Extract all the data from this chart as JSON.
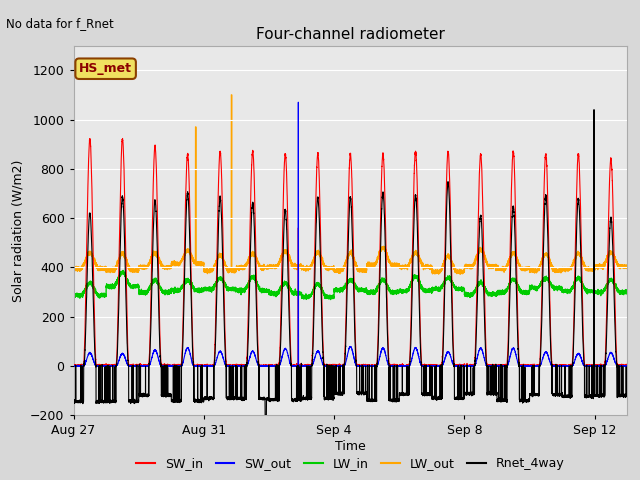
{
  "title": "Four-channel radiometer",
  "top_left_text": "No data for f_Rnet",
  "annotation_box": "HS_met",
  "xlabel": "Time",
  "ylabel": "Solar radiation (W/m2)",
  "ylim": [
    -200,
    1300
  ],
  "yticks": [
    -200,
    0,
    200,
    400,
    600,
    800,
    1000,
    1200
  ],
  "fig_bg_color": "#d8d8d8",
  "plot_bg_color": "#e8e8e8",
  "colors": {
    "SW_in": "#ff0000",
    "SW_out": "#0000ff",
    "LW_in": "#00cc00",
    "LW_out": "#ffa500",
    "Rnet_4way": "#000000"
  },
  "legend_labels": [
    "SW_in",
    "SW_out",
    "LW_in",
    "LW_out",
    "Rnet_4way"
  ],
  "x_tick_labels": [
    "Aug 27",
    "Aug 31",
    "Sep 4",
    "Sep 8",
    "Sep 12"
  ],
  "x_tick_positions": [
    0,
    4,
    8,
    12,
    16
  ],
  "total_days": 17
}
